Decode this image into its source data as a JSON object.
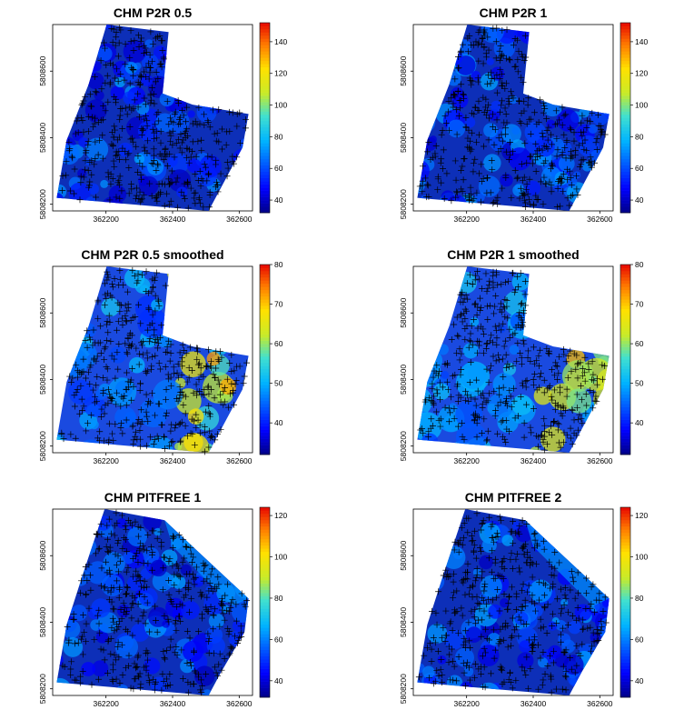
{
  "chart_data": [
    {
      "type": "heatmap",
      "title": "CHM P2R 0.5",
      "x_ticks": [
        "362200",
        "362400",
        "362600"
      ],
      "y_ticks": [
        "5808200",
        "5808400",
        "5808600"
      ],
      "xlim": [
        362040,
        362640
      ],
      "ylim": [
        5808180,
        5808740
      ],
      "colorbar": {
        "ticks": [
          "40",
          "60",
          "80",
          "100",
          "120",
          "140"
        ],
        "range": [
          32,
          152
        ]
      },
      "footprint": "notched",
      "smoothed": false,
      "tree_markers": "+"
    },
    {
      "type": "heatmap",
      "title": "CHM P2R 1",
      "x_ticks": [
        "362200",
        "362400",
        "362600"
      ],
      "y_ticks": [
        "5808200",
        "5808400",
        "5808600"
      ],
      "xlim": [
        362040,
        362640
      ],
      "ylim": [
        5808180,
        5808740
      ],
      "colorbar": {
        "ticks": [
          "40",
          "60",
          "80",
          "100",
          "120",
          "140"
        ],
        "range": [
          32,
          152
        ]
      },
      "footprint": "notched",
      "smoothed": false,
      "tree_markers": "+"
    },
    {
      "type": "heatmap",
      "title": "CHM P2R 0.5 smoothed",
      "x_ticks": [
        "362200",
        "362400",
        "362600"
      ],
      "y_ticks": [
        "5808200",
        "5808400",
        "5808600"
      ],
      "xlim": [
        362040,
        362640
      ],
      "ylim": [
        5808180,
        5808740
      ],
      "colorbar": {
        "ticks": [
          "40",
          "50",
          "60",
          "70",
          "80"
        ],
        "range": [
          32,
          80
        ]
      },
      "footprint": "notched",
      "smoothed": true,
      "tree_markers": "+"
    },
    {
      "type": "heatmap",
      "title": "CHM P2R 1 smoothed",
      "x_ticks": [
        "362200",
        "362400",
        "362600"
      ],
      "y_ticks": [
        "5808200",
        "5808400",
        "5808600"
      ],
      "xlim": [
        362040,
        362640
      ],
      "ylim": [
        5808180,
        5808740
      ],
      "colorbar": {
        "ticks": [
          "40",
          "50",
          "60",
          "70",
          "80"
        ],
        "range": [
          32,
          80
        ]
      },
      "footprint": "notched",
      "smoothed": true,
      "tree_markers": "+"
    },
    {
      "type": "heatmap",
      "title": "CHM PITFREE 1",
      "x_ticks": [
        "362200",
        "362400",
        "362600"
      ],
      "y_ticks": [
        "5808200",
        "5808400",
        "5808600"
      ],
      "xlim": [
        362040,
        362640
      ],
      "ylim": [
        5808180,
        5808740
      ],
      "colorbar": {
        "ticks": [
          "40",
          "60",
          "80",
          "100",
          "120"
        ],
        "range": [
          32,
          124
        ]
      },
      "footprint": "convex",
      "smoothed": false,
      "tree_markers": "+"
    },
    {
      "type": "heatmap",
      "title": "CHM PITFREE 2",
      "x_ticks": [
        "362200",
        "362400",
        "362600"
      ],
      "y_ticks": [
        "5808200",
        "5808400",
        "5808600"
      ],
      "xlim": [
        362040,
        362640
      ],
      "ylim": [
        5808180,
        5808740
      ],
      "colorbar": {
        "ticks": [
          "40",
          "60",
          "80",
          "100",
          "120"
        ],
        "range": [
          32,
          124
        ]
      },
      "footprint": "convex",
      "smoothed": false,
      "tree_markers": "+"
    }
  ]
}
